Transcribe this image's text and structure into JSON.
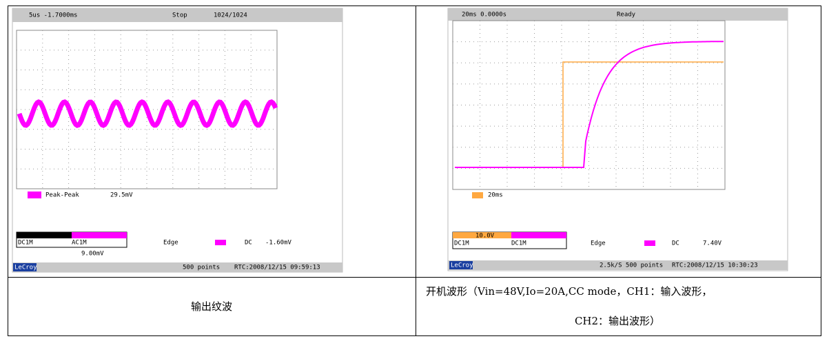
{
  "left_scope": {
    "timebase": "5us -1.7000ms",
    "status": "Stop",
    "sweeps": "1024/1024",
    "measure": "Peak-Peak",
    "measure_value": "29.5mV",
    "trigger": "Edge",
    "coupling": "DC",
    "level": "-1.60mV",
    "ch1": "DC1M",
    "ch2": "AC1M",
    "math": "9.00mV",
    "points": "500 points",
    "rtc": "RTC:2008/12/15 09:59:13",
    "brand": "LeCroy"
  },
  "right_scope": {
    "timebase": "20ms 0.0000s",
    "status": "Ready",
    "zoom": "20ms",
    "trigger": "Edge",
    "coupling": "DC",
    "level": "7.40V",
    "ch1": "DC1M",
    "ch2": "DC1M",
    "volts": "10.0V",
    "points": "2.5k/S 500 points",
    "rtc": "RTC:2008/12/15 10:30:23",
    "brand": "LeCroy"
  },
  "captions": {
    "left": "输出纹波",
    "right_line1": "开机波形（Vin=48V,Io=20A,CC mode，CH1：输入波形，",
    "right_line2": "CH2：输出波形）"
  }
}
